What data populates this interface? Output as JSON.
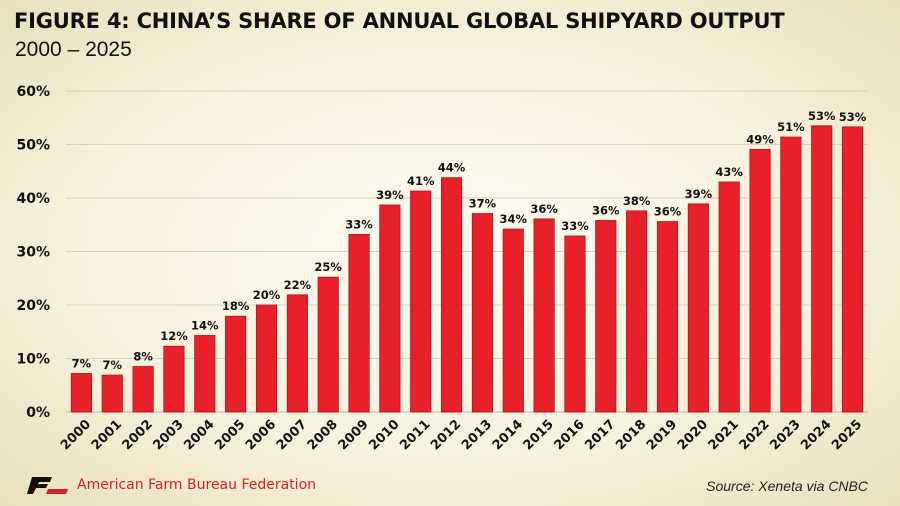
{
  "header": {
    "title": "FIGURE 4: CHINA’S SHARE OF ANNUAL GLOBAL SHIPYARD OUTPUT",
    "subtitle": "2000 – 2025"
  },
  "footer": {
    "brand": "American Farm Bureau Federation",
    "brand_mark": "FB",
    "source": "Source: Xeneta via CNBC"
  },
  "colors": {
    "bar": "#e8202a",
    "bar_stroke": "#b3151c",
    "brand": "#d2232a",
    "grid": "#d8d2bd"
  },
  "chart_data": {
    "type": "bar",
    "title": "FIGURE 4: CHINA’S SHARE OF ANNUAL GLOBAL SHIPYARD OUTPUT",
    "subtitle": "2000 – 2025",
    "xlabel": "",
    "ylabel": "",
    "ylim": [
      0,
      60
    ],
    "yticks": [
      0,
      10,
      20,
      30,
      40,
      50,
      60
    ],
    "ytick_labels": [
      "0%",
      "10%",
      "20%",
      "30%",
      "40%",
      "50%",
      "60%"
    ],
    "grid": true,
    "legend": "none",
    "categories": [
      "2000",
      "2001",
      "2002",
      "2003",
      "2004",
      "2005",
      "2006",
      "2007",
      "2008",
      "2009",
      "2010",
      "2011",
      "2012",
      "2013",
      "2014",
      "2015",
      "2016",
      "2017",
      "2018",
      "2019",
      "2020",
      "2021",
      "2022",
      "2023",
      "2024",
      "2025"
    ],
    "values": [
      7.2,
      6.9,
      8.5,
      12.3,
      14.3,
      17.9,
      20.0,
      21.9,
      25.2,
      33.2,
      38.7,
      41.3,
      43.8,
      37.1,
      34.2,
      36.1,
      32.9,
      35.8,
      37.6,
      35.6,
      38.9,
      43.0,
      49.1,
      51.4,
      53.5,
      53.3
    ],
    "data_labels": [
      "7%",
      "7%",
      "8%",
      "12%",
      "14%",
      "18%",
      "20%",
      "22%",
      "25%",
      "33%",
      "39%",
      "41%",
      "44%",
      "37%",
      "34%",
      "36%",
      "33%",
      "36%",
      "38%",
      "36%",
      "39%",
      "43%",
      "49%",
      "51%",
      "53%",
      "53%"
    ]
  }
}
